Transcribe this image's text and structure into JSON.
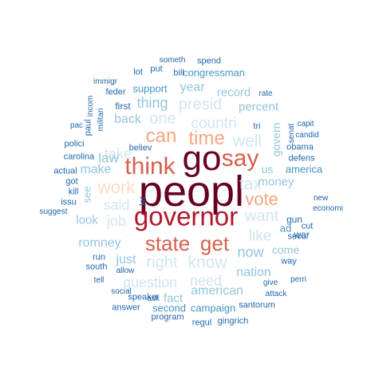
{
  "palette": {
    "darkest": "#67001f",
    "dark_red": "#b2182b",
    "red": "#d6604d",
    "orange": "#f4a582",
    "peach": "#fddbc7",
    "pale_blue": "#d1e5f0",
    "light_blue": "#92c5de",
    "mid_blue": "#4393c3",
    "dark_blue": "#2166ac"
  },
  "words": [
    {
      "text": "peopl",
      "tone": "darkest"
    },
    {
      "text": "go",
      "tone": "darkest"
    },
    {
      "text": "governor",
      "tone": "dark_red"
    },
    {
      "text": "think",
      "tone": "red"
    },
    {
      "text": "say",
      "tone": "red"
    },
    {
      "text": "state",
      "tone": "red"
    },
    {
      "text": "get",
      "tone": "red"
    },
    {
      "text": "can",
      "tone": "orange"
    },
    {
      "text": "time",
      "tone": "orange"
    },
    {
      "text": "vote",
      "tone": "orange"
    },
    {
      "text": "work",
      "tone": "peach"
    },
    {
      "text": "well",
      "tone": "pale_blue"
    },
    {
      "text": "tax",
      "tone": "pale_blue"
    },
    {
      "text": "want",
      "tone": "pale_blue"
    },
    {
      "text": "like",
      "tone": "pale_blue"
    },
    {
      "text": "know",
      "tone": "pale_blue"
    },
    {
      "text": "right",
      "tone": "pale_blue"
    },
    {
      "text": "one",
      "tone": "pale_blue"
    },
    {
      "text": "countri",
      "tone": "pale_blue"
    },
    {
      "text": "presid",
      "tone": "pale_blue"
    },
    {
      "text": "question",
      "tone": "pale_blue"
    },
    {
      "text": "need",
      "tone": "pale_blue"
    },
    {
      "text": "take",
      "tone": "pale_blue"
    },
    {
      "text": "said",
      "tone": "pale_blue"
    },
    {
      "text": "job",
      "tone": "pale_blue"
    },
    {
      "text": "now",
      "tone": "light_blue"
    },
    {
      "text": "thing",
      "tone": "light_blue"
    },
    {
      "text": "year",
      "tone": "light_blue"
    },
    {
      "text": "record",
      "tone": "light_blue"
    },
    {
      "text": "make",
      "tone": "light_blue"
    },
    {
      "text": "law",
      "tone": "light_blue"
    },
    {
      "text": "back",
      "tone": "light_blue"
    },
    {
      "text": "look",
      "tone": "light_blue"
    },
    {
      "text": "romney",
      "tone": "light_blue"
    },
    {
      "text": "just",
      "tone": "light_blue"
    },
    {
      "text": "fact",
      "tone": "light_blue"
    },
    {
      "text": "american",
      "tone": "light_blue"
    },
    {
      "text": "nation",
      "tone": "light_blue"
    },
    {
      "text": "money",
      "tone": "light_blue"
    },
    {
      "text": "percent",
      "tone": "light_blue"
    },
    {
      "text": "come",
      "tone": "light_blue"
    },
    {
      "text": "us",
      "tone": "light_blue"
    },
    {
      "text": "see",
      "tone": "light_blue"
    },
    {
      "text": "govern",
      "tone": "light_blue"
    },
    {
      "text": "second",
      "tone": "mid_blue"
    },
    {
      "text": "campaign",
      "tone": "mid_blue"
    },
    {
      "text": "support",
      "tone": "mid_blue"
    },
    {
      "text": "congressman",
      "tone": "mid_blue"
    },
    {
      "text": "america",
      "tone": "mid_blue"
    },
    {
      "text": "ad",
      "tone": "mid_blue"
    },
    {
      "text": "first",
      "tone": "dark_blue"
    },
    {
      "text": "feder",
      "tone": "dark_blue"
    },
    {
      "text": "immigr",
      "tone": "dark_blue"
    },
    {
      "text": "lot",
      "tone": "dark_blue"
    },
    {
      "text": "put",
      "tone": "dark_blue"
    },
    {
      "text": "bill",
      "tone": "dark_blue"
    },
    {
      "text": "someth",
      "tone": "dark_blue"
    },
    {
      "text": "spend",
      "tone": "dark_blue"
    },
    {
      "text": "rate",
      "tone": "dark_blue"
    },
    {
      "text": "candid",
      "tone": "dark_blue"
    },
    {
      "text": "capit",
      "tone": "dark_blue"
    },
    {
      "text": "senat",
      "tone": "dark_blue"
    },
    {
      "text": "defens",
      "tone": "dark_blue"
    },
    {
      "text": "obama",
      "tone": "dark_blue"
    },
    {
      "text": "tri",
      "tone": "dark_blue"
    },
    {
      "text": "pac",
      "tone": "dark_blue"
    },
    {
      "text": "polici",
      "tone": "dark_blue"
    },
    {
      "text": "carolina",
      "tone": "dark_blue"
    },
    {
      "text": "incom",
      "tone": "dark_blue"
    },
    {
      "text": "militari",
      "tone": "dark_blue"
    },
    {
      "text": "paul",
      "tone": "dark_blue"
    },
    {
      "text": "believ",
      "tone": "dark_blue"
    },
    {
      "text": "actual",
      "tone": "dark_blue"
    },
    {
      "text": "got",
      "tone": "dark_blue"
    },
    {
      "text": "kill",
      "tone": "dark_blue"
    },
    {
      "text": "issu",
      "tone": "dark_blue"
    },
    {
      "text": "suggest",
      "tone": "dark_blue"
    },
    {
      "text": "let",
      "tone": "dark_blue"
    },
    {
      "text": "gun",
      "tone": "dark_blue"
    },
    {
      "text": "war",
      "tone": "dark_blue"
    },
    {
      "text": "new",
      "tone": "dark_blue"
    },
    {
      "text": "economi",
      "tone": "dark_blue"
    },
    {
      "text": "cut",
      "tone": "dark_blue"
    },
    {
      "text": "secur",
      "tone": "dark_blue"
    },
    {
      "text": "way",
      "tone": "dark_blue"
    },
    {
      "text": "run",
      "tone": "dark_blue"
    },
    {
      "text": "south",
      "tone": "dark_blue"
    },
    {
      "text": "allow",
      "tone": "dark_blue"
    },
    {
      "text": "tell",
      "tone": "dark_blue"
    },
    {
      "text": "social",
      "tone": "dark_blue"
    },
    {
      "text": "speaker",
      "tone": "dark_blue"
    },
    {
      "text": "ask",
      "tone": "dark_blue"
    },
    {
      "text": "answer",
      "tone": "dark_blue"
    },
    {
      "text": "program",
      "tone": "dark_blue"
    },
    {
      "text": "regul",
      "tone": "dark_blue"
    },
    {
      "text": "gingrich",
      "tone": "dark_blue"
    },
    {
      "text": "santorum",
      "tone": "dark_blue"
    },
    {
      "text": "attack",
      "tone": "dark_blue"
    },
    {
      "text": "give",
      "tone": "dark_blue"
    },
    {
      "text": "perri",
      "tone": "dark_blue"
    }
  ]
}
